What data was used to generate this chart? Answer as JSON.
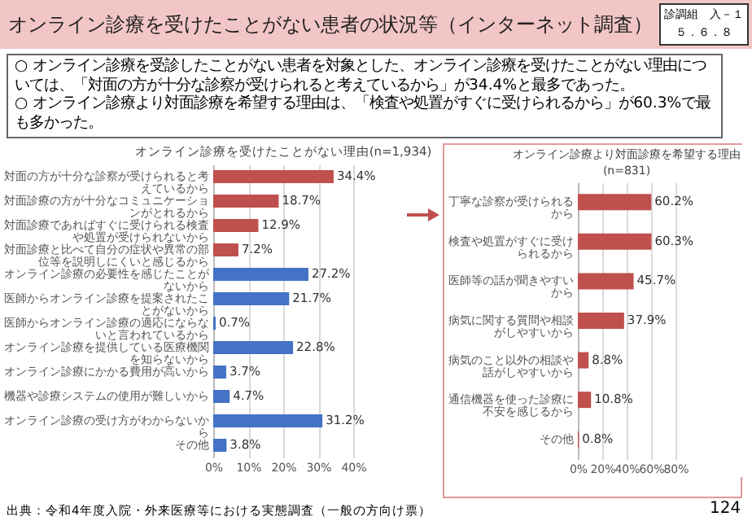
{
  "chart_data": [
    {
      "type": "other",
      "title": "オンライン診療を受けたことがない患者の状況等（インターネット調査）",
      "annotations": [
        "診調組　入－１",
        "５．６．８",
        "○ オンライン診療を受診したことがない患者を対象とした、オンライン診療を受けたことがない理由については、「対面の方が十分な診察が受けられると考えているから」が34.4%と最多であった。",
        "○ オンライン診療より対面診療を希望する理由は、「検査や処置がすぐに受けられるから」が60.3%で最も多かった。",
        "出典：令和4年度入院・外来医療等における実態調査（一般の方向け票）",
        "124"
      ]
    },
    {
      "type": "bar",
      "orientation": "horizontal",
      "title": "オンライン診療を受けたことがない理由(n=1,934)",
      "categories": [
        "対面の方が十分な診察が受けられると考えているから",
        "対面診療の方が十分なコミュニケーションがとれるから",
        "対面診療であればすぐに受けられる検査や処置が受けられないから",
        "対面診療と比べて自分の症状や異常の部位等を説明しにくいと感じるから",
        "オンライン診療の必要性を感じたことがないから",
        "医師からオンライン診療を提案されたことがないから",
        "医師からオンライン診療の適応にならないと言われているから",
        "オンライン診療を提供している医療機関を知らないから",
        "オンライン診療にかかる費用が高いから",
        "機器や診療システムの使用が難しいから",
        "オンライン診療の受け方がわからないから",
        "その他"
      ],
      "values": [
        34.4,
        18.7,
        12.9,
        7.2,
        27.2,
        21.7,
        0.7,
        22.8,
        3.7,
        4.7,
        31.2,
        3.8
      ],
      "colors": [
        "#c0504d",
        "#c0504d",
        "#c0504d",
        "#c0504d",
        "#4472c4",
        "#4472c4",
        "#4472c4",
        "#4472c4",
        "#4472c4",
        "#4472c4",
        "#4472c4",
        "#4472c4"
      ],
      "value_labels": [
        "34.4%",
        "18.7%",
        "12.9%",
        "7.2%",
        "27.2%",
        "21.7%",
        "0.7%",
        "22.8%",
        "3.7%",
        "4.7%",
        "31.2%",
        "3.8%"
      ],
      "xlim": [
        0,
        40
      ],
      "xticks": [
        {
          "value": 0,
          "label": "0%"
        },
        {
          "value": 10,
          "label": "10%"
        },
        {
          "value": 20,
          "label": "20%"
        },
        {
          "value": 30,
          "label": "30%"
        },
        {
          "value": 40,
          "label": "40%"
        }
      ],
      "grid": "x"
    },
    {
      "type": "bar",
      "orientation": "horizontal",
      "title": "オンライン診療より対面診療を希望する理由",
      "subtitle": "(n=831)",
      "categories": [
        "丁寧な診察が受けられるから",
        "検査や処置がすぐに受けられるから",
        "医師等の話が聞きやすいから",
        "病気に関する質問や相談がしやすいから",
        "病気のこと以外の相談や話がしやすいから",
        "通信機器を使った診療に不安を感じるから",
        "その他"
      ],
      "values": [
        60.2,
        60.3,
        45.7,
        37.9,
        8.8,
        10.8,
        0.8
      ],
      "color": "#c0504d",
      "value_labels": [
        "60.2%",
        "60.3%",
        "45.7%",
        "37.9%",
        "8.8%",
        "10.8%",
        "0.8%"
      ],
      "xlim": [
        0,
        80
      ],
      "xticks": [
        {
          "value": 0,
          "label": "0%"
        },
        {
          "value": 20,
          "label": "20%"
        },
        {
          "value": 40,
          "label": "40%"
        },
        {
          "value": 60,
          "label": "60%"
        },
        {
          "value": 80,
          "label": "80%"
        }
      ],
      "grid": "x"
    }
  ]
}
